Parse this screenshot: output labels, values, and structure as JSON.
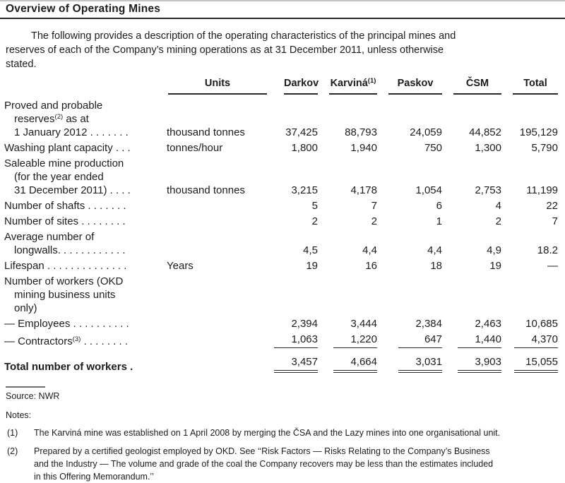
{
  "page": {
    "title": "Overview of Operating Mines",
    "intro": "The following provides a description of the operating characteristics of the principal mines and\nreserves of each of the Company’s mining operations as at 31 December 2011, unless otherwise\nstated."
  },
  "table": {
    "headers": {
      "units": "Units",
      "darkov": "Darkov",
      "karvina": "Karviná",
      "karvina_sup": "(1)",
      "paskov": "Paskov",
      "csm": "ČSM",
      "total": "Total"
    },
    "rows": {
      "reserves": {
        "label1": "Proved and probable",
        "label2_pre": "reserves",
        "label2_sup": "(2)",
        "label2_post": " as at",
        "label3": "1 January 2012 . . . . . . .",
        "units": "thousand tonnes",
        "darkov": "37,425",
        "karvina": "88,793",
        "paskov": "24,059",
        "csm": "44,852",
        "total": "195,129"
      },
      "washing": {
        "label": "Washing plant capacity . . .",
        "units": "tonnes/hour",
        "darkov": "1,800",
        "karvina": "1,940",
        "paskov": "750",
        "csm": "1,300",
        "total": "5,790"
      },
      "production": {
        "label1": "Saleable mine production",
        "label2": "(for the year ended",
        "label3": "31 December 2011) . . . .",
        "units": "thousand tonnes",
        "darkov": "3,215",
        "karvina": "4,178",
        "paskov": "1,054",
        "csm": "2,753",
        "total": "11,199"
      },
      "shafts": {
        "label": "Number of shafts . . . . . . .",
        "darkov": "5",
        "karvina": "7",
        "paskov": "6",
        "csm": "4",
        "total": "22"
      },
      "sites": {
        "label": "Number of sites . . . . . . . .",
        "darkov": "2",
        "karvina": "2",
        "paskov": "1",
        "csm": "2",
        "total": "7"
      },
      "longwalls": {
        "label1": "Average number of",
        "label2": "longwalls. . . . . . . . . . . .",
        "darkov": "4,5",
        "karvina": "4,4",
        "paskov": "4,4",
        "csm": "4,9",
        "total": "18.2"
      },
      "lifespan": {
        "label": "Lifespan . . . . . . . . . . . . . .",
        "units": "Years",
        "darkov": "19",
        "karvina": "16",
        "paskov": "18",
        "csm": "19",
        "total": "—"
      },
      "workers_group": {
        "label1": "Number of workers (OKD",
        "label2": "mining business units",
        "label3": "only)"
      },
      "employees": {
        "label": "— Employees . . . . . . . . . .",
        "darkov": "2,394",
        "karvina": "3,444",
        "paskov": "2,384",
        "csm": "2,463",
        "total": "10,685"
      },
      "contractors": {
        "label_pre": "— Contractors",
        "label_sup": "(3)",
        "label_post": " . . . . . . . .",
        "darkov": "1,063",
        "karvina": "1,220",
        "paskov": "647",
        "csm": "1,440",
        "total": "4,370"
      },
      "total_workers": {
        "label": "Total number of workers .",
        "darkov": "3,457",
        "karvina": "4,664",
        "paskov": "3,031",
        "csm": "3,903",
        "total": "15,055"
      }
    }
  },
  "footer": {
    "source": "Source: NWR",
    "notes_label": "Notes:",
    "note1_num": "(1)",
    "note1_text": "The Karviná mine was established on 1 April 2008 by merging the ČSA and the Lazy mines into one organisational unit.",
    "note2_num": "(2)",
    "note2_text": "Prepared by a certified geologist employed by OKD. See ‘‘Risk Factors — Risks Relating to the Company’s Business\nand the Industry — The volume and grade of the coal the Company recovers may be less than the estimates included\nin this Offering Memorandum.’’"
  }
}
